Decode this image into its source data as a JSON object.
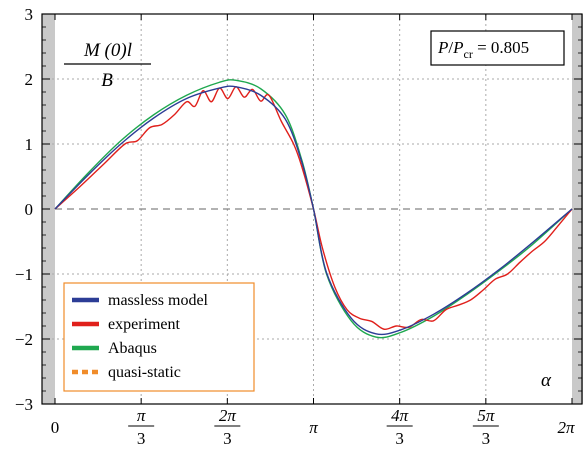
{
  "chart_data": {
    "type": "line",
    "title": "",
    "xlabel": "α",
    "ylabel": {
      "numerator": "M (0)l",
      "denominator": "B"
    },
    "annotation": {
      "P": "P",
      "slash": "/",
      "P2": "P",
      "sub": "cr",
      "eq": " = 0.805"
    },
    "xlim": [
      0,
      6.2832
    ],
    "ylim": [
      -3,
      3
    ],
    "grid": true,
    "legend_position": "bottom-left",
    "x_ticks": [
      {
        "value": 0,
        "num": "0",
        "den": ""
      },
      {
        "value": 1.0472,
        "num": "π",
        "den": "3"
      },
      {
        "value": 2.0944,
        "num": "2π",
        "den": "3"
      },
      {
        "value": 3.1416,
        "num": "π",
        "den": ""
      },
      {
        "value": 4.1888,
        "num": "4π",
        "den": "3"
      },
      {
        "value": 5.236,
        "num": "5π",
        "den": "3"
      },
      {
        "value": 6.2832,
        "num": "2π",
        "den": ""
      }
    ],
    "y_ticks": [
      {
        "value": 3,
        "label": "3"
      },
      {
        "value": 2,
        "label": "2"
      },
      {
        "value": 1,
        "label": "1"
      },
      {
        "value": 0,
        "label": "0"
      },
      {
        "value": -1,
        "label": "−1"
      },
      {
        "value": -2,
        "label": "−2"
      },
      {
        "value": -3,
        "label": "−3"
      }
    ],
    "series": [
      {
        "name": "Abaqus",
        "color": "#1fa84f",
        "x": [
          0,
          0.4,
          0.8,
          1.2,
          1.6,
          2.0,
          2.2,
          2.5,
          2.8,
          3.0,
          3.1416,
          3.3,
          3.6,
          3.9,
          4.2,
          4.6,
          5.0,
          5.4,
          5.8,
          6.2832
        ],
        "y": [
          0,
          0.55,
          1.05,
          1.45,
          1.75,
          1.95,
          1.98,
          1.85,
          1.45,
          0.75,
          0,
          -1.0,
          -1.72,
          -1.97,
          -1.9,
          -1.65,
          -1.32,
          -0.95,
          -0.55,
          0
        ]
      },
      {
        "name": "massless model",
        "color": "#2c3d96",
        "x": [
          0,
          0.4,
          0.8,
          1.2,
          1.6,
          2.0,
          2.2,
          2.5,
          2.8,
          3.0,
          3.1416,
          3.3,
          3.6,
          3.9,
          4.2,
          4.6,
          5.0,
          5.4,
          5.8,
          6.2832
        ],
        "y": [
          0,
          0.52,
          1.0,
          1.4,
          1.7,
          1.86,
          1.88,
          1.75,
          1.38,
          0.72,
          0,
          -0.98,
          -1.68,
          -1.92,
          -1.86,
          -1.62,
          -1.3,
          -0.93,
          -0.52,
          0
        ]
      },
      {
        "name": "experiment",
        "color": "#e0201b",
        "x": [
          0,
          0.3,
          0.6,
          0.85,
          1.0,
          1.15,
          1.3,
          1.45,
          1.6,
          1.7,
          1.8,
          1.9,
          2.0,
          2.1,
          2.2,
          2.3,
          2.4,
          2.5,
          2.6,
          2.75,
          2.9,
          3.0,
          3.1416,
          3.25,
          3.4,
          3.55,
          3.7,
          3.85,
          4.0,
          4.15,
          4.3,
          4.45,
          4.6,
          4.75,
          4.9,
          5.05,
          5.2,
          5.35,
          5.5,
          5.65,
          5.8,
          5.95,
          6.1,
          6.2832
        ],
        "y": [
          0,
          0.34,
          0.7,
          1.0,
          1.05,
          1.25,
          1.3,
          1.45,
          1.65,
          1.58,
          1.82,
          1.65,
          1.86,
          1.7,
          1.88,
          1.72,
          1.84,
          1.66,
          1.75,
          1.35,
          1.0,
          0.65,
          0,
          -0.6,
          -1.2,
          -1.55,
          -1.68,
          -1.73,
          -1.85,
          -1.8,
          -1.82,
          -1.7,
          -1.72,
          -1.55,
          -1.48,
          -1.4,
          -1.25,
          -1.08,
          -1.0,
          -0.82,
          -0.65,
          -0.5,
          -0.28,
          0
        ]
      },
      {
        "name": "quasi-static",
        "color": "#f08c2a",
        "dashed": true,
        "x": [
          0,
          6.2832
        ],
        "y": [
          0,
          0
        ]
      }
    ],
    "legend_order": [
      "massless model",
      "experiment",
      "Abaqus",
      "quasi-static"
    ]
  }
}
